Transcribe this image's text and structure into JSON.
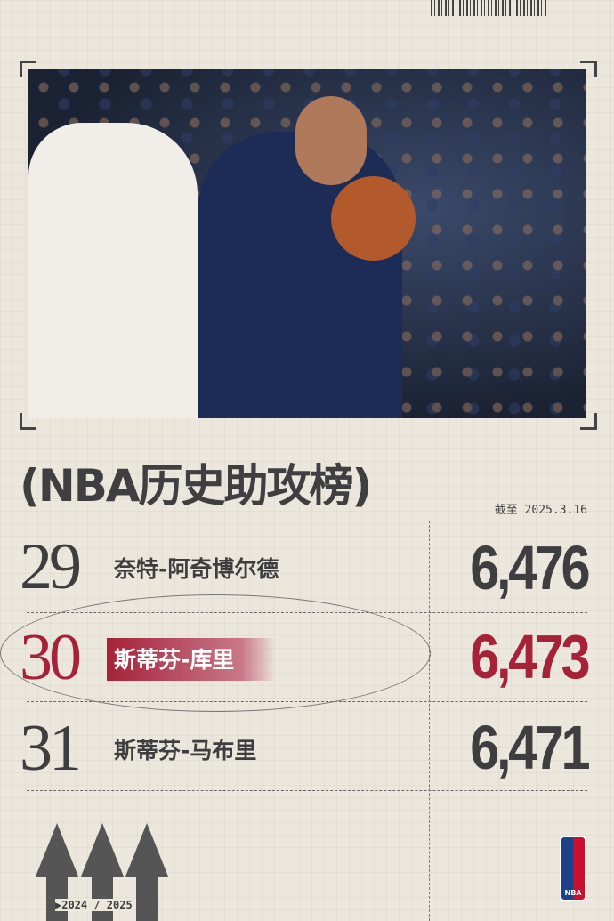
{
  "title": "(NBA历史助攻榜)",
  "as_of": "截至 2025.3.16",
  "rows": [
    {
      "rank": "29",
      "name": "奈特-阿奇博尔德",
      "assists": "6,476",
      "highlight": false
    },
    {
      "rank": "30",
      "name": "斯蒂芬-库里",
      "assists": "6,473",
      "highlight": true
    },
    {
      "rank": "31",
      "name": "斯蒂芬-马布里",
      "assists": "6,471",
      "highlight": false
    }
  ],
  "season": "▶2024 / 2025",
  "logo_text": "NBA",
  "colors": {
    "accent": "#a52238",
    "text": "#3e3e40",
    "background": "#ece7dc"
  }
}
